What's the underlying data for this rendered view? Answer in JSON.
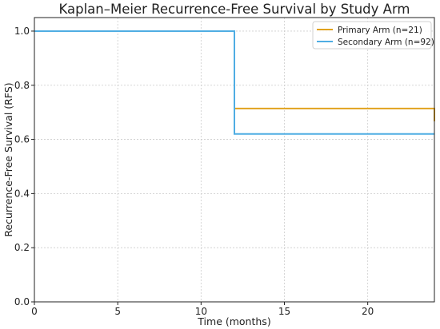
{
  "chart_data": {
    "type": "line",
    "title": "Kaplan–Meier Recurrence-Free Survival by Study Arm",
    "xlabel": "Time (months)",
    "ylabel": "Recurrence-Free Survival (RFS)",
    "xlim": [
      0,
      24
    ],
    "ylim": [
      0,
      1.05
    ],
    "xticks": [
      0,
      5,
      10,
      15,
      20
    ],
    "yticks": [
      0.0,
      0.2,
      0.4,
      0.6,
      0.8,
      1.0
    ],
    "xtick_labels": [
      "0",
      "5",
      "10",
      "15",
      "20"
    ],
    "ytick_labels": [
      "0.0",
      "0.2",
      "0.4",
      "0.6",
      "0.8",
      "1.0"
    ],
    "grid": true,
    "legend_position": "top-right",
    "step": "post",
    "series": [
      {
        "name": "Primary Arm (n=21)",
        "color": "#e1a21e",
        "x": [
          0,
          12,
          24,
          24
        ],
        "y": [
          1.0,
          0.714,
          0.714,
          0.667
        ]
      },
      {
        "name": "Secondary Arm (n=92)",
        "color": "#4fade3",
        "x": [
          0,
          12,
          24
        ],
        "y": [
          1.0,
          0.62,
          0.62
        ]
      }
    ]
  }
}
